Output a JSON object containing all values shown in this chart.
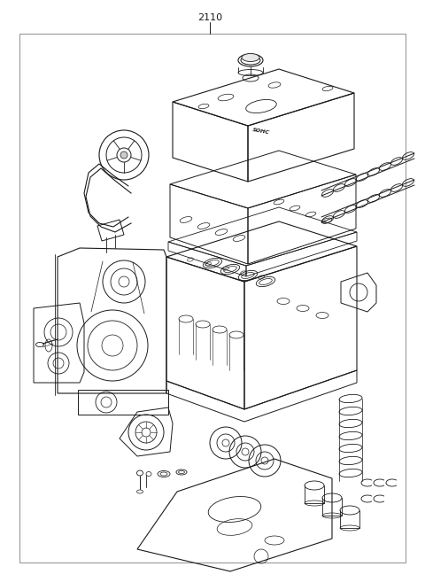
{
  "title": "2110",
  "bg_color": "#ffffff",
  "line_color": "#1a1a1a",
  "fig_width": 4.8,
  "fig_height": 6.57,
  "dpi": 100
}
